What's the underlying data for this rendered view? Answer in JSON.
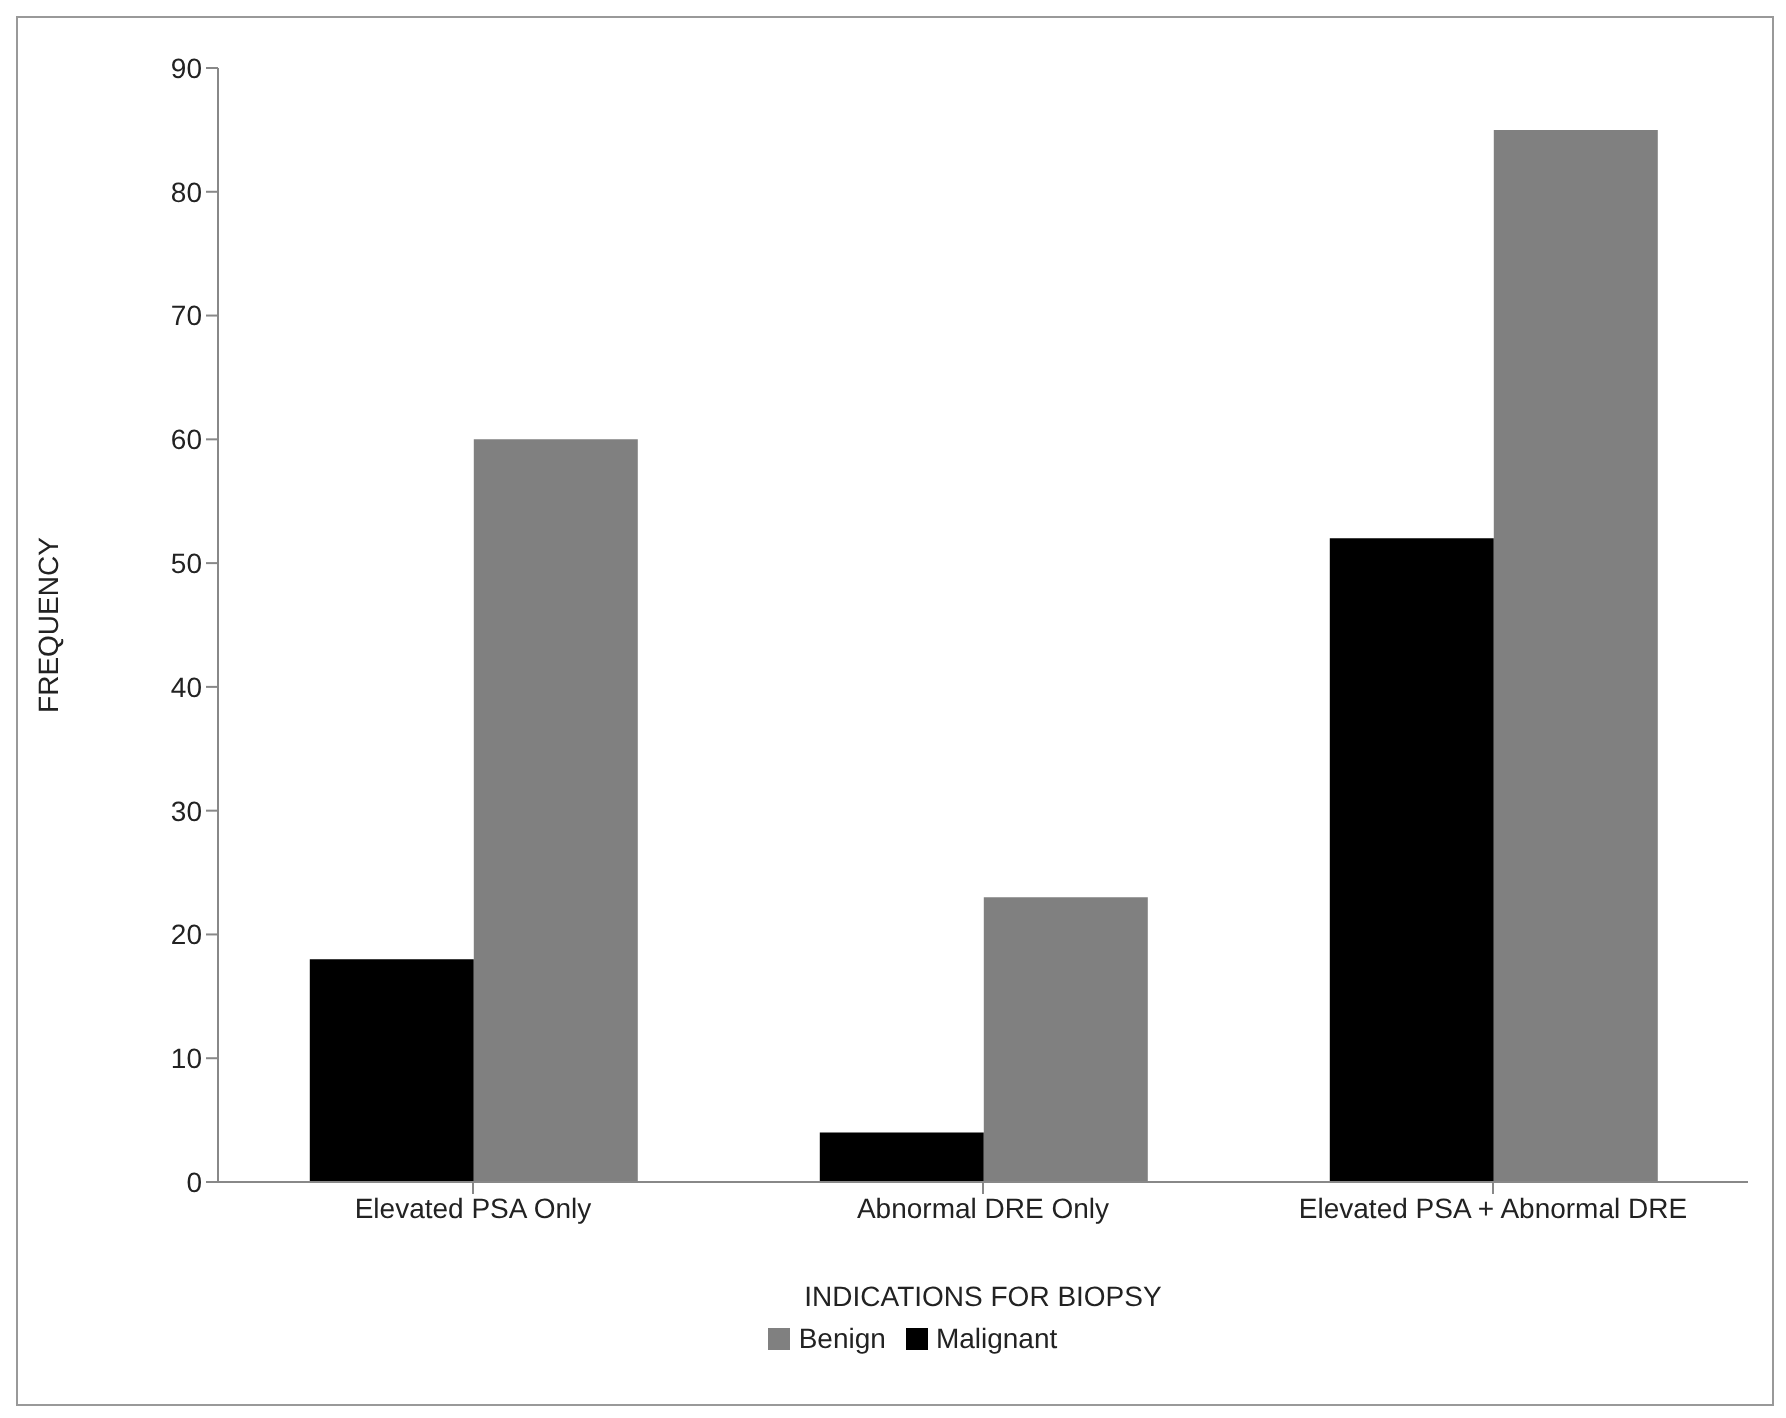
{
  "chart_data": {
    "type": "bar",
    "xlabel": "INDICATIONS FOR BIOPSY",
    "ylabel": "FREQUENCY",
    "categories": [
      "Elevated PSA Only",
      "Abnormal DRE Only",
      "Elevated PSA + Abnormal DRE"
    ],
    "series": [
      {
        "name": "Malignant",
        "color": "#000000",
        "values": [
          18,
          4,
          52
        ]
      },
      {
        "name": "Benign",
        "color": "#808080",
        "values": [
          60,
          23,
          85
        ]
      }
    ],
    "ylim": [
      0,
      90
    ],
    "yticks": [
      0,
      10,
      20,
      30,
      40,
      50,
      60,
      70,
      80,
      90
    ],
    "grid": false,
    "legend": "bottom"
  }
}
